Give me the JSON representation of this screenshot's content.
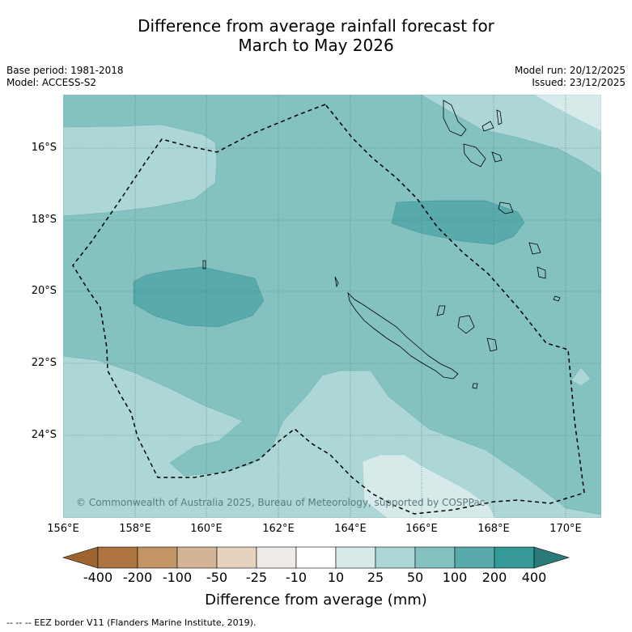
{
  "title_line1": "Difference from average rainfall forecast for",
  "title_line2": "March to May 2026",
  "meta_left": {
    "base_period": "Base period: 1981-2018",
    "model": "Model: ACCESS-S2"
  },
  "meta_right": {
    "model_run": "Model run: 20/12/2025",
    "issued": "Issued: 23/12/2025"
  },
  "latitude_labels": [
    "16°S",
    "18°S",
    "20°S",
    "22°S",
    "24°S"
  ],
  "longitude_labels": [
    "156°E",
    "158°E",
    "160°E",
    "162°E",
    "164°E",
    "166°E",
    "168°E",
    "170°E"
  ],
  "copyright": "© Commonwealth of Australia 2025, Bureau of Meteorology, supported by COSPPac",
  "colorbar": {
    "tick_labels": [
      "-400",
      "-200",
      "-100",
      "-50",
      "-25",
      "-10",
      "10",
      "25",
      "50",
      "100",
      "200",
      "400"
    ],
    "colors": [
      "#ad7440",
      "#c29466",
      "#d4b396",
      "#e6d2bf",
      "#efebe8",
      "#ffffff",
      "#d6eaea",
      "#add6d6",
      "#84c2c1",
      "#59aaab",
      "#359a97",
      "#2b7a77"
    ],
    "label": "Difference from average (mm)"
  },
  "footer": "--  --  -- EEZ border V11 (Flanders Marine Institute, 2019)."
}
